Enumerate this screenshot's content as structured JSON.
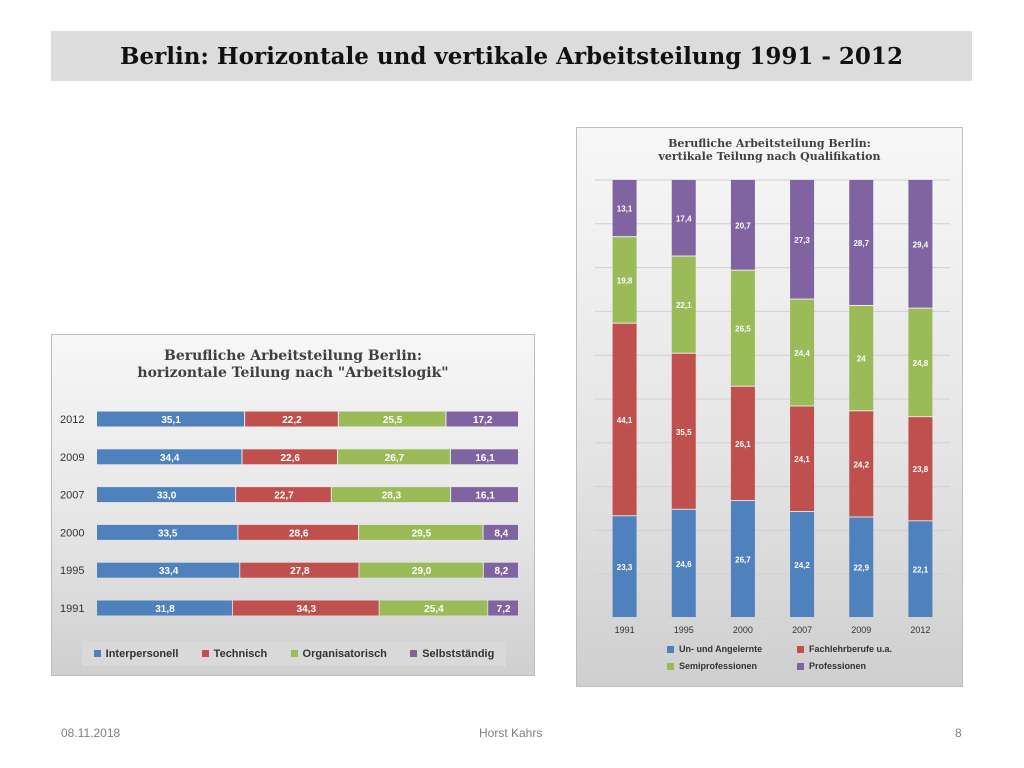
{
  "page": {
    "title": "Berlin: Horizontale und vertikale Arbeitsteilung 1991 - 2012",
    "footer_date": "08.11.2018",
    "footer_author": "Horst Kahrs",
    "footer_page": "8"
  },
  "chart_data": [
    {
      "type": "bar",
      "orientation": "horizontal",
      "stacked": "percent",
      "title": "Berufliche Arbeitsteilung Berlin:",
      "subtitle": "horizontale Teilung nach \"Arbeitslogik\"",
      "categories": [
        "2012",
        "2009",
        "2007",
        "2000",
        "1995",
        "1991"
      ],
      "category_labels": [
        "2012",
        "2009",
        "2007",
        "2000",
        "1995",
        "1991"
      ],
      "series": [
        {
          "name": "Interpersonell",
          "color": "#4f81bd",
          "values": [
            35.1,
            34.4,
            33.0,
            33.5,
            33.4,
            31.8
          ],
          "labels": [
            "35,1",
            "34,4",
            "33,0",
            "33,5",
            "33,4",
            "31,8"
          ]
        },
        {
          "name": "Technisch",
          "color": "#c0504d",
          "values": [
            22.2,
            22.6,
            22.7,
            28.6,
            27.8,
            34.3
          ],
          "labels": [
            "22,2",
            "22,6",
            "22,7",
            "28,6",
            "27,8",
            "34,3"
          ]
        },
        {
          "name": "Organisatorisch",
          "color": "#9bbb59",
          "values": [
            25.5,
            26.7,
            28.3,
            29.5,
            29.0,
            25.4
          ],
          "labels": [
            "25,5",
            "26,7",
            "28,3",
            "29,5",
            "29,0",
            "25,4"
          ]
        },
        {
          "name": "Selbstständig",
          "color": "#8064a2",
          "values": [
            17.2,
            16.1,
            16.1,
            8.4,
            8.2,
            7.2
          ],
          "labels": [
            "17,2",
            "16,1",
            "16,1",
            "8,4",
            "8,2",
            "7,2"
          ]
        }
      ],
      "legend": "bottom",
      "grid": false
    },
    {
      "type": "bar",
      "orientation": "vertical",
      "stacked": "percent",
      "title": "Berufliche Arbeitsteilung Berlin:",
      "subtitle": "vertikale Teilung nach Qualifikation",
      "categories": [
        "1991",
        "1995",
        "2000",
        "2007",
        "2009",
        "2012"
      ],
      "category_labels": [
        "1991",
        "1995",
        "2000",
        "2007",
        "2009",
        "2012"
      ],
      "series": [
        {
          "name": "Un- und Angelernte",
          "color": "#4f81bd",
          "values": [
            23.3,
            24.6,
            26.7,
            24.2,
            22.9,
            22.1
          ],
          "labels": [
            "23,3",
            "24,6",
            "26,7",
            "24,2",
            "22,9",
            "22,1"
          ]
        },
        {
          "name": "Fachlehrberufe u.a.",
          "color": "#c0504d",
          "values": [
            44.1,
            35.5,
            26.1,
            24.1,
            24.2,
            23.8
          ],
          "labels": [
            "44,1",
            "35,5",
            "26,1",
            "24,1",
            "24,2",
            "23,8"
          ]
        },
        {
          "name": "Semiprofessionen",
          "color": "#9bbb59",
          "values": [
            19.8,
            22.1,
            26.5,
            24.4,
            24.0,
            24.8
          ],
          "labels": [
            "19,8",
            "22,1",
            "26,5",
            "24,4",
            "24",
            "24,8"
          ]
        },
        {
          "name": "Professionen",
          "color": "#8064a2",
          "values": [
            13.1,
            17.4,
            20.7,
            27.3,
            28.7,
            29.4
          ],
          "labels": [
            "13,1",
            "17,4",
            "20,7",
            "27,3",
            "28,7",
            "29,4"
          ]
        }
      ],
      "legend": "bottom",
      "grid": true
    }
  ]
}
